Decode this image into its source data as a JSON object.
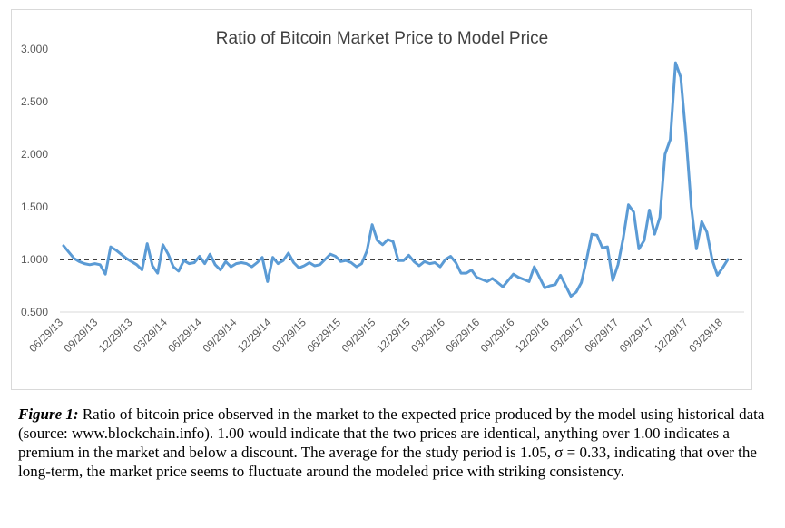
{
  "chart_data": {
    "type": "line",
    "title": "Ratio of Bitcoin Market Price to Model Price",
    "ylim": [
      0.5,
      3.0
    ],
    "y_ticks": [
      "0.500",
      "1.000",
      "1.500",
      "2.000",
      "2.500",
      "3.000"
    ],
    "x_tick_labels": [
      "06/29/13",
      "09/29/13",
      "12/29/13",
      "03/29/14",
      "06/29/14",
      "09/29/14",
      "12/29/14",
      "03/29/15",
      "06/29/15",
      "09/29/15",
      "12/29/15",
      "03/29/16",
      "06/29/16",
      "09/29/16",
      "12/29/16",
      "03/29/17",
      "06/29/17",
      "09/29/17",
      "12/29/17",
      "03/29/18"
    ],
    "reference_line": {
      "y": 1.0,
      "style": "dashed",
      "color": "#000000"
    },
    "series": [
      {
        "color": "#5b9bd5",
        "values": [
          1.13,
          1.07,
          1.01,
          0.98,
          0.96,
          0.95,
          0.96,
          0.95,
          0.86,
          1.12,
          1.09,
          1.05,
          1.01,
          0.98,
          0.95,
          0.9,
          1.15,
          0.94,
          0.87,
          1.14,
          1.05,
          0.93,
          0.89,
          0.99,
          0.96,
          0.97,
          1.03,
          0.96,
          1.05,
          0.95,
          0.9,
          0.98,
          0.93,
          0.96,
          0.97,
          0.96,
          0.93,
          0.97,
          1.02,
          0.79,
          1.02,
          0.96,
          0.99,
          1.06,
          0.97,
          0.92,
          0.94,
          0.97,
          0.94,
          0.95,
          1.0,
          1.05,
          1.03,
          0.98,
          0.99,
          0.97,
          0.93,
          0.96,
          1.08,
          1.33,
          1.18,
          1.14,
          1.19,
          1.17,
          0.99,
          0.99,
          1.04,
          0.98,
          0.94,
          0.98,
          0.96,
          0.97,
          0.93,
          1.0,
          1.03,
          0.97,
          0.87,
          0.87,
          0.9,
          0.83,
          0.81,
          0.79,
          0.82,
          0.78,
          0.74,
          0.8,
          0.86,
          0.83,
          0.81,
          0.79,
          0.93,
          0.83,
          0.73,
          0.75,
          0.76,
          0.85,
          0.75,
          0.65,
          0.69,
          0.78,
          1.0,
          1.24,
          1.23,
          1.11,
          1.12,
          0.8,
          0.95,
          1.2,
          1.52,
          1.45,
          1.1,
          1.18,
          1.47,
          1.24,
          1.4,
          2.0,
          2.14,
          2.87,
          2.73,
          2.17,
          1.5,
          1.1,
          1.36,
          1.26,
          1.0,
          0.85,
          0.92,
          1.0
        ]
      }
    ]
  },
  "caption": {
    "label": "Figure 1:",
    "text": " Ratio of bitcoin price observed in the market to the expected price produced by the model using historical data (source: www.blockchain.info). 1.00 would indicate that the two prices are identical, anything over 1.00 indicates a premium in the market and below a discount. The average for the study period is 1.05, σ = 0.33, indicating that over the long-term, the market price seems to fluctuate around the modeled price with striking consistency."
  }
}
